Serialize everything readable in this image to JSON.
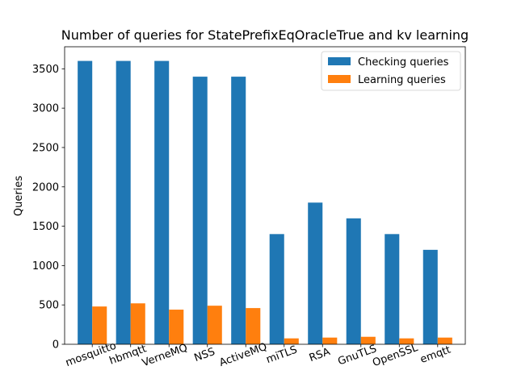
{
  "chart_data": {
    "type": "bar",
    "title": "Number of queries for StatePrefixEqOracleTrue and kv learning",
    "xlabel": "",
    "ylabel": "Queries",
    "ylim": [
      0,
      3780
    ],
    "yticks": [
      0,
      500,
      1000,
      1500,
      2000,
      2500,
      3000,
      3500
    ],
    "categories": [
      "mosquitto",
      "hbmqtt",
      "VerneMQ",
      "NSS",
      "ActiveMQ",
      "miTLS",
      "RSA",
      "GnuTLS",
      "OpenSSL",
      "emqtt"
    ],
    "series": [
      {
        "name": "Checking queries",
        "color": "#1f77b4",
        "values": [
          3600,
          3600,
          3600,
          3400,
          3400,
          1400,
          1800,
          1600,
          1400,
          1200
        ]
      },
      {
        "name": "Learning queries",
        "color": "#ff7f0e",
        "values": [
          480,
          520,
          440,
          490,
          460,
          75,
          85,
          95,
          75,
          85
        ]
      }
    ],
    "legend_position": "top-right",
    "grid": false,
    "xtick_rotation_deg": 20
  }
}
